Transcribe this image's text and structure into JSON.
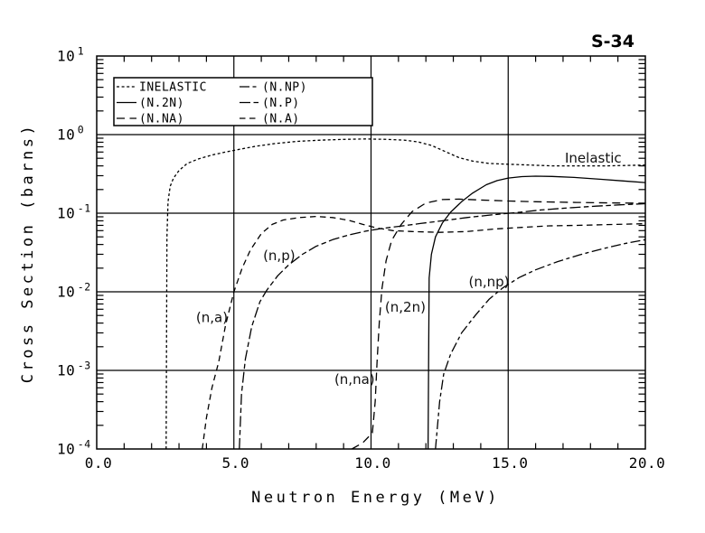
{
  "title": "S-34",
  "colors": {
    "foreground": "#000000",
    "background": "#ffffff"
  },
  "chart_data": {
    "type": "line",
    "title": "S-34",
    "xlabel": "Neutron Energy (MeV)",
    "ylabel": "Cross Section (barns)",
    "xlim": [
      0,
      20
    ],
    "x_major_ticks": [
      0,
      5,
      10,
      15,
      20
    ],
    "x_tick_labels": [
      "0.0",
      "5.0",
      "10.0",
      "15.0",
      "20.0"
    ],
    "x_minor_step": 1,
    "y_scale": "log",
    "ylim": [
      0.0001,
      10
    ],
    "y_tick_exponents": [
      1,
      0,
      -1,
      -2,
      -3,
      -4
    ],
    "grid": true,
    "legend": {
      "position": "top-left",
      "columns": 2,
      "entries": [
        {
          "label": "INELASTIC",
          "style": "fine-dash"
        },
        {
          "label": "(N.2N)",
          "style": "solid"
        },
        {
          "label": "(N.NA)",
          "style": "long-dash"
        },
        {
          "label": "(N.NP)",
          "style": "dash-dot"
        },
        {
          "label": "(N.P)",
          "style": "long-short-dash"
        },
        {
          "label": "(N.A)",
          "style": "med-dash"
        }
      ]
    },
    "series": [
      {
        "id": "inelastic",
        "legend_label": "INELASTIC",
        "style": "fine-dash",
        "points": [
          [
            2.53,
            0.0001
          ],
          [
            2.56,
            0.05
          ],
          [
            2.6,
            0.14
          ],
          [
            2.68,
            0.22
          ],
          [
            2.8,
            0.28
          ],
          [
            3.0,
            0.35
          ],
          [
            3.3,
            0.43
          ],
          [
            3.7,
            0.49
          ],
          [
            4.2,
            0.55
          ],
          [
            4.7,
            0.6
          ],
          [
            5.2,
            0.65
          ],
          [
            5.8,
            0.71
          ],
          [
            6.5,
            0.77
          ],
          [
            7.3,
            0.82
          ],
          [
            8.2,
            0.85
          ],
          [
            9.0,
            0.87
          ],
          [
            9.8,
            0.88
          ],
          [
            10.6,
            0.87
          ],
          [
            11.2,
            0.85
          ],
          [
            11.7,
            0.81
          ],
          [
            12.2,
            0.73
          ],
          [
            12.7,
            0.61
          ],
          [
            13.2,
            0.51
          ],
          [
            13.7,
            0.46
          ],
          [
            14.3,
            0.43
          ],
          [
            15.0,
            0.42
          ],
          [
            15.8,
            0.41
          ],
          [
            16.6,
            0.4
          ],
          [
            17.6,
            0.4
          ],
          [
            18.6,
            0.4
          ],
          [
            20.0,
            0.41
          ]
        ]
      },
      {
        "id": "n2n",
        "legend_label": "(N.2N)",
        "style": "solid",
        "points": [
          [
            12.08,
            0.0001
          ],
          [
            12.12,
            0.015
          ],
          [
            12.2,
            0.03
          ],
          [
            12.35,
            0.05
          ],
          [
            12.6,
            0.075
          ],
          [
            12.9,
            0.103
          ],
          [
            13.3,
            0.14
          ],
          [
            13.7,
            0.18
          ],
          [
            14.2,
            0.23
          ],
          [
            14.6,
            0.26
          ],
          [
            15.0,
            0.28
          ],
          [
            15.5,
            0.292
          ],
          [
            16.0,
            0.296
          ],
          [
            16.6,
            0.294
          ],
          [
            17.4,
            0.285
          ],
          [
            18.4,
            0.27
          ],
          [
            19.2,
            0.257
          ],
          [
            20.0,
            0.245
          ]
        ]
      },
      {
        "id": "nna",
        "legend_label": "(N.NA)",
        "style": "long-dash",
        "points": [
          [
            9.3,
            0.0001
          ],
          [
            9.7,
            0.00012
          ],
          [
            10.05,
            0.00016
          ],
          [
            10.15,
            0.0004
          ],
          [
            10.22,
            0.0013
          ],
          [
            10.3,
            0.004
          ],
          [
            10.4,
            0.011
          ],
          [
            10.55,
            0.025
          ],
          [
            10.75,
            0.045
          ],
          [
            11.1,
            0.072
          ],
          [
            11.5,
            0.105
          ],
          [
            12.0,
            0.135
          ],
          [
            12.6,
            0.149
          ],
          [
            13.2,
            0.151
          ],
          [
            14.0,
            0.147
          ],
          [
            15.0,
            0.143
          ],
          [
            16.0,
            0.14
          ],
          [
            17.5,
            0.137
          ],
          [
            19.0,
            0.135
          ],
          [
            20.0,
            0.134
          ]
        ]
      },
      {
        "id": "nnp",
        "legend_label": "(N.NP)",
        "style": "dash-dot",
        "points": [
          [
            12.35,
            0.0001
          ],
          [
            12.5,
            0.0004
          ],
          [
            12.65,
            0.0009
          ],
          [
            12.9,
            0.0016
          ],
          [
            13.3,
            0.003
          ],
          [
            13.8,
            0.005
          ],
          [
            14.3,
            0.008
          ],
          [
            14.8,
            0.0112
          ],
          [
            15.4,
            0.0152
          ],
          [
            16.0,
            0.019
          ],
          [
            16.8,
            0.0242
          ],
          [
            17.6,
            0.0295
          ],
          [
            18.4,
            0.035
          ],
          [
            19.2,
            0.0408
          ],
          [
            20.0,
            0.046
          ]
        ]
      },
      {
        "id": "np",
        "legend_label": "(N.P)",
        "style": "long-short-dash",
        "points": [
          [
            5.2,
            0.0001
          ],
          [
            5.28,
            0.0005
          ],
          [
            5.42,
            0.0014
          ],
          [
            5.65,
            0.0036
          ],
          [
            5.95,
            0.0075
          ],
          [
            6.2,
            0.0105
          ],
          [
            6.6,
            0.016
          ],
          [
            7.0,
            0.022
          ],
          [
            7.5,
            0.03
          ],
          [
            8.0,
            0.038
          ],
          [
            8.6,
            0.046
          ],
          [
            9.2,
            0.053
          ],
          [
            9.8,
            0.059
          ],
          [
            10.4,
            0.064
          ],
          [
            11.0,
            0.068
          ],
          [
            11.8,
            0.074
          ],
          [
            12.6,
            0.08
          ],
          [
            13.5,
            0.088
          ],
          [
            14.4,
            0.095
          ],
          [
            15.3,
            0.102
          ],
          [
            16.2,
            0.11
          ],
          [
            17.2,
            0.117
          ],
          [
            18.2,
            0.123
          ],
          [
            19.1,
            0.128
          ],
          [
            20.0,
            0.132
          ]
        ]
      },
      {
        "id": "na",
        "legend_label": "(N.A)",
        "style": "med-dash",
        "points": [
          [
            3.85,
            0.0001
          ],
          [
            4.0,
            0.00025
          ],
          [
            4.2,
            0.0006
          ],
          [
            4.45,
            0.0013
          ],
          [
            4.7,
            0.0038
          ],
          [
            5.0,
            0.01
          ],
          [
            5.3,
            0.02
          ],
          [
            5.6,
            0.034
          ],
          [
            6.0,
            0.055
          ],
          [
            6.4,
            0.072
          ],
          [
            6.8,
            0.082
          ],
          [
            7.4,
            0.088
          ],
          [
            8.0,
            0.091
          ],
          [
            8.6,
            0.088
          ],
          [
            9.2,
            0.081
          ],
          [
            9.7,
            0.072
          ],
          [
            10.2,
            0.065
          ],
          [
            10.8,
            0.06
          ],
          [
            11.5,
            0.0585
          ],
          [
            12.5,
            0.057
          ],
          [
            13.5,
            0.0585
          ],
          [
            14.5,
            0.063
          ],
          [
            15.5,
            0.066
          ],
          [
            16.5,
            0.069
          ],
          [
            17.5,
            0.07
          ],
          [
            18.5,
            0.0715
          ],
          [
            19.2,
            0.0725
          ],
          [
            20.0,
            0.0735
          ]
        ]
      }
    ],
    "annotations": [
      {
        "text": "(n,a)",
        "x": 4.2,
        "y": 0.0047
      },
      {
        "text": "(n,p)",
        "x": 6.65,
        "y": 0.029
      },
      {
        "text": "(n,na)",
        "x": 9.4,
        "y": 0.00077
      },
      {
        "text": "(n,2n)",
        "x": 11.25,
        "y": 0.0064
      },
      {
        "text": "(n,np)",
        "x": 14.3,
        "y": 0.0134
      },
      {
        "text": "Inelastic",
        "x": 18.1,
        "y": 0.5
      }
    ]
  }
}
